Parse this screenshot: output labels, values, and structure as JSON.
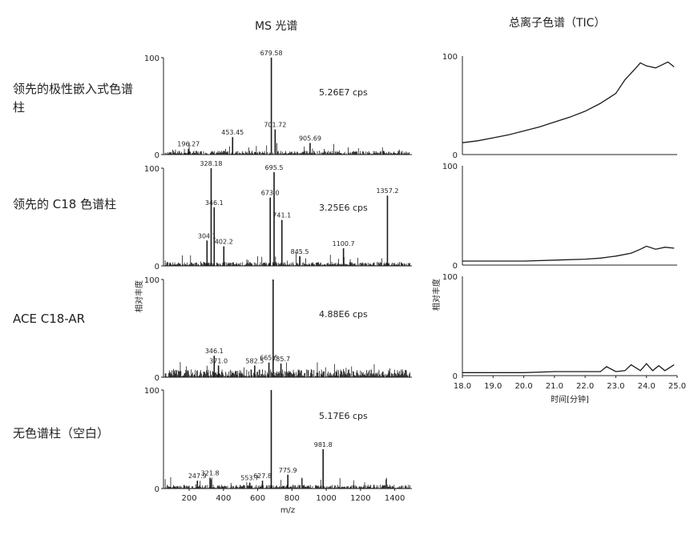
{
  "titles": {
    "ms": "MS 光谱",
    "tic": "总离子色谱（TIC）"
  },
  "row_labels": [
    "领先的极性嵌入式色谱柱",
    "领先的 C18 色谱柱",
    "ACE C18-AR",
    "无色谱柱（空白）"
  ],
  "colors": {
    "line": "#1a1a1a",
    "axis": "#222222",
    "callout": "#3a9a3a"
  },
  "chart_data": [
    {
      "type": "bar",
      "panel": "ms-0",
      "title": "MS 光谱",
      "xlim": [
        50,
        1500
      ],
      "ylim": [
        0,
        100
      ],
      "ytick_labels": [
        "0",
        "100"
      ],
      "intensity_label": "5.26E7 cps",
      "peaks": [
        {
          "mz": 196.27,
          "label": "196.27",
          "value": 6
        },
        {
          "mz": 453.45,
          "label": "453.45",
          "value": 18
        },
        {
          "mz": 679.58,
          "label": "679.58",
          "value": 100
        },
        {
          "mz": 701.72,
          "label": "701.72",
          "value": 26
        },
        {
          "mz": 905.69,
          "label": "905.69",
          "value": 12
        }
      ]
    },
    {
      "type": "bar",
      "panel": "ms-1",
      "xlim": [
        50,
        1500
      ],
      "ylim": [
        0,
        100
      ],
      "ytick_labels": [
        "0",
        "100"
      ],
      "intensity_label": "3.25E6 cps",
      "peaks": [
        {
          "mz": 304.1,
          "label": "304.1",
          "value": 26
        },
        {
          "mz": 328.18,
          "label": "328.18",
          "value": 100
        },
        {
          "mz": 346.1,
          "label": "346.1",
          "value": 60
        },
        {
          "mz": 402.2,
          "label": "402.2",
          "value": 20
        },
        {
          "mz": 673.0,
          "label": "673.0",
          "value": 70
        },
        {
          "mz": 695.5,
          "label": "695.5",
          "value": 96
        },
        {
          "mz": 741.1,
          "label": "741.1",
          "value": 47
        },
        {
          "mz": 845.5,
          "label": "845.5",
          "value": 10
        },
        {
          "mz": 1100.7,
          "label": "1100.7",
          "value": 18
        },
        {
          "mz": 1357.2,
          "label": "1357.2",
          "value": 72
        }
      ]
    },
    {
      "type": "bar",
      "panel": "ms-2",
      "xlim": [
        50,
        1500
      ],
      "ylim": [
        0,
        100
      ],
      "ytick_labels": [
        "0",
        "100"
      ],
      "intensity_label": "4.88E6 cps",
      "peaks": [
        {
          "mz": 346.1,
          "label": "346.1",
          "value": 22
        },
        {
          "mz": 371.0,
          "label": "371.0",
          "value": 12
        },
        {
          "mz": 582.5,
          "label": "582.5",
          "value": 12
        },
        {
          "mz": 665.5,
          "label": "665.5",
          "value": 15
        },
        {
          "mz": 690.0,
          "label": "",
          "value": 100
        },
        {
          "mz": 735.7,
          "label": "735.7",
          "value": 14
        }
      ]
    },
    {
      "type": "bar",
      "panel": "ms-3",
      "xlim": [
        50,
        1500
      ],
      "ylim": [
        0,
        100
      ],
      "ytick_labels": [
        "0",
        "100"
      ],
      "xtick_labels": [
        "200",
        "400",
        "600",
        "800",
        "1000",
        "1200",
        "1400"
      ],
      "xticks": [
        200,
        400,
        600,
        800,
        1000,
        1200,
        1400
      ],
      "xlabel": "m/z",
      "intensity_label": "5.17E6 cps",
      "peaks": [
        {
          "mz": 247.9,
          "label": "247.9",
          "value": 8
        },
        {
          "mz": 321.8,
          "label": "321.8",
          "value": 11
        },
        {
          "mz": 553.7,
          "label": "553.7",
          "value": 6
        },
        {
          "mz": 627.8,
          "label": "627.8",
          "value": 8
        },
        {
          "mz": 679.0,
          "label": "",
          "value": 100
        },
        {
          "mz": 775.9,
          "label": "775.9",
          "value": 14
        },
        {
          "mz": 981.8,
          "label": "981.8",
          "value": 40
        }
      ]
    },
    {
      "type": "line",
      "panel": "tic-0",
      "title": "总离子色谱（TIC）",
      "xlim": [
        18.0,
        25.0
      ],
      "ylim": [
        0,
        100
      ],
      "ytick_labels": [
        "0",
        "100"
      ],
      "x": [
        18.0,
        18.5,
        19.0,
        19.5,
        20.0,
        20.5,
        21.0,
        21.5,
        22.0,
        22.5,
        23.0,
        23.3,
        23.6,
        23.8,
        24.0,
        24.3,
        24.5,
        24.7,
        24.9
      ],
      "y": [
        12,
        14,
        17,
        20,
        24,
        28,
        33,
        38,
        44,
        52,
        62,
        76,
        86,
        93,
        90,
        88,
        91,
        94,
        89
      ]
    },
    {
      "type": "line",
      "panel": "tic-1",
      "xlim": [
        18.0,
        25.0
      ],
      "ylim": [
        0,
        100
      ],
      "ytick_labels": [
        "0",
        "100"
      ],
      "x": [
        18.0,
        19.0,
        20.0,
        21.0,
        22.0,
        22.5,
        23.0,
        23.5,
        23.8,
        24.0,
        24.3,
        24.6,
        24.9
      ],
      "y": [
        4,
        4,
        4,
        5,
        6,
        7,
        9,
        12,
        16,
        19,
        16,
        18,
        17
      ]
    },
    {
      "type": "line",
      "panel": "tic-2",
      "xlim": [
        18.0,
        25.0
      ],
      "ylim": [
        0,
        100
      ],
      "ytick_labels": [
        "0",
        "100"
      ],
      "ylabel": "相对丰度",
      "xtick_labels": [
        "18.0",
        "19.0",
        "20.0",
        "21.0",
        "22.0",
        "23.0",
        "24.0",
        "25.0"
      ],
      "xticks": [
        18.0,
        19.0,
        20.0,
        21.0,
        22.0,
        23.0,
        24.0,
        25.0
      ],
      "xlabel": "时间[分钟]",
      "x": [
        18.0,
        19.0,
        20.0,
        21.0,
        22.0,
        22.5,
        22.7,
        23.0,
        23.3,
        23.5,
        23.8,
        24.0,
        24.2,
        24.4,
        24.6,
        24.9
      ],
      "y": [
        3,
        3,
        3,
        4,
        4,
        4,
        9,
        4,
        5,
        11,
        5,
        12,
        5,
        10,
        5,
        11
      ]
    }
  ],
  "ms_ylabel": "相对丰度",
  "tic_ylabel": "相对丰度"
}
